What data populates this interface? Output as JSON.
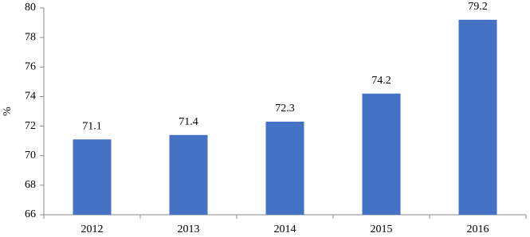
{
  "chart_data": {
    "type": "bar",
    "y_label": "%",
    "categories": [
      "2012",
      "2013",
      "2014",
      "2015",
      "2016"
    ],
    "values": [
      71.1,
      71.4,
      72.3,
      74.2,
      79.2
    ],
    "color": "#4472c4",
    "ylim": [
      66,
      80
    ],
    "yticks": [
      66,
      68,
      70,
      72,
      74,
      76,
      78,
      80
    ],
    "grid": false,
    "data_labels": true
  }
}
